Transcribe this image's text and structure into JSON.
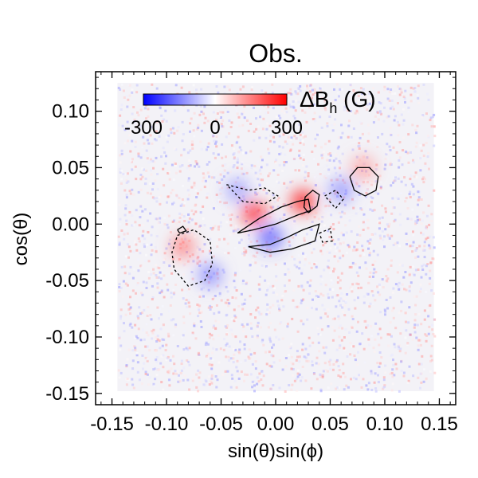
{
  "chart_data": {
    "type": "heatmap",
    "title": "Obs.",
    "xlabel": "sin(θ)sin(ϕ)",
    "ylabel": "cos(θ)",
    "xlim": [
      -0.165,
      0.165
    ],
    "ylim": [
      -0.16,
      0.135
    ],
    "xticks": [
      -0.15,
      -0.1,
      -0.05,
      0.0,
      0.05,
      0.1,
      0.15
    ],
    "xtick_labels": [
      "-0.15",
      "-0.10",
      "-0.05",
      "0.00",
      "0.05",
      "0.10",
      "0.15"
    ],
    "yticks": [
      -0.15,
      -0.1,
      -0.05,
      0.0,
      0.05,
      0.1
    ],
    "ytick_labels": [
      "-0.15",
      "-0.10",
      "-0.05",
      "0.00",
      "0.05",
      "0.10"
    ],
    "data_extent": {
      "x": [
        -0.145,
        0.145
      ],
      "y": [
        -0.148,
        0.125
      ]
    },
    "colorbar": {
      "label_main": "ΔB",
      "label_sub": "h",
      "label_unit": " (G)",
      "min": -300,
      "max": 300,
      "tick_values": [
        -300,
        0,
        300
      ],
      "tick_labels": [
        "-300",
        "0",
        "300"
      ],
      "colors": [
        "#0000ff",
        "#ffffff",
        "#ff0000"
      ]
    },
    "features": [
      {
        "kind": "positive",
        "x": -0.02,
        "y": 0.01,
        "value": 280
      },
      {
        "kind": "positive",
        "x": 0.025,
        "y": 0.02,
        "value": 300
      },
      {
        "kind": "positive",
        "x": -0.085,
        "y": -0.02,
        "value": 160
      },
      {
        "kind": "positive",
        "x": 0.08,
        "y": 0.05,
        "value": 120
      },
      {
        "kind": "negative",
        "x": -0.005,
        "y": -0.012,
        "value": -220
      },
      {
        "kind": "negative",
        "x": -0.06,
        "y": -0.045,
        "value": -150
      },
      {
        "kind": "negative",
        "x": 0.06,
        "y": 0.03,
        "value": -140
      },
      {
        "kind": "negative",
        "x": -0.035,
        "y": 0.03,
        "value": -120
      }
    ],
    "contours": [
      {
        "style": "solid",
        "points": [
          [
            -0.035,
            -0.008
          ],
          [
            -0.015,
            0.005
          ],
          [
            0.005,
            0.015
          ],
          [
            0.02,
            0.02
          ],
          [
            0.03,
            0.022
          ],
          [
            0.032,
            0.012
          ],
          [
            0.02,
            0.008
          ],
          [
            0.0,
            0.0
          ],
          [
            -0.02,
            -0.005
          ],
          [
            -0.035,
            -0.008
          ]
        ]
      },
      {
        "style": "solid",
        "points": [
          [
            0.03,
            0.01
          ],
          [
            0.038,
            0.016
          ],
          [
            0.04,
            0.026
          ],
          [
            0.034,
            0.03
          ],
          [
            0.027,
            0.024
          ],
          [
            0.026,
            0.015
          ],
          [
            0.03,
            0.01
          ]
        ]
      },
      {
        "style": "solid",
        "points": [
          [
            -0.025,
            -0.02
          ],
          [
            -0.005,
            -0.018
          ],
          [
            0.01,
            -0.012
          ],
          [
            0.025,
            -0.005
          ],
          [
            0.04,
            0.0
          ],
          [
            0.036,
            -0.015
          ],
          [
            0.015,
            -0.022
          ],
          [
            -0.005,
            -0.025
          ],
          [
            -0.025,
            -0.02
          ]
        ]
      },
      {
        "style": "solid",
        "points": [
          [
            0.068,
            0.042
          ],
          [
            0.075,
            0.05
          ],
          [
            0.086,
            0.05
          ],
          [
            0.094,
            0.042
          ],
          [
            0.092,
            0.03
          ],
          [
            0.082,
            0.025
          ],
          [
            0.072,
            0.03
          ],
          [
            0.068,
            0.042
          ]
        ]
      },
      {
        "style": "solid",
        "points": [
          [
            -0.09,
            -0.005
          ],
          [
            -0.085,
            -0.002
          ],
          [
            -0.082,
            -0.006
          ],
          [
            -0.088,
            -0.008
          ],
          [
            -0.09,
            -0.005
          ]
        ]
      },
      {
        "style": "dashed",
        "points": [
          [
            -0.09,
            -0.01
          ],
          [
            -0.075,
            -0.005
          ],
          [
            -0.06,
            -0.015
          ],
          [
            -0.058,
            -0.035
          ],
          [
            -0.065,
            -0.05
          ],
          [
            -0.08,
            -0.055
          ],
          [
            -0.093,
            -0.04
          ],
          [
            -0.095,
            -0.025
          ],
          [
            -0.09,
            -0.01
          ]
        ]
      },
      {
        "style": "dashed",
        "points": [
          [
            -0.045,
            0.035
          ],
          [
            -0.025,
            0.03
          ],
          [
            -0.01,
            0.032
          ],
          [
            0.002,
            0.025
          ],
          [
            -0.01,
            0.018
          ],
          [
            -0.03,
            0.02
          ],
          [
            -0.045,
            0.035
          ]
        ]
      },
      {
        "style": "dashed",
        "points": [
          [
            0.045,
            0.025
          ],
          [
            0.055,
            0.03
          ],
          [
            0.062,
            0.022
          ],
          [
            0.055,
            0.014
          ],
          [
            0.045,
            0.025
          ]
        ]
      },
      {
        "style": "dashed",
        "points": [
          [
            0.04,
            -0.008
          ],
          [
            0.05,
            -0.004
          ],
          [
            0.052,
            -0.015
          ],
          [
            0.043,
            -0.016
          ],
          [
            0.04,
            -0.008
          ]
        ]
      }
    ]
  }
}
